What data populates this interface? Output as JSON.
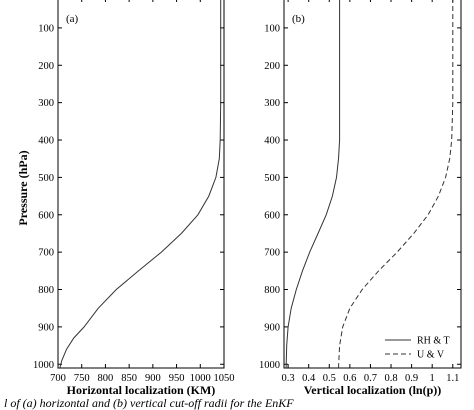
{
  "chart_data": [
    {
      "type": "line",
      "panel_label": "(a)",
      "xlabel": "Horizontal localization (KM)",
      "ylabel": "Pressure (hPa)",
      "xlim": [
        700,
        1050
      ],
      "ylim": [
        1010,
        20
      ],
      "y_direction": "inverted",
      "xticks": [
        700,
        750,
        800,
        850,
        900,
        950,
        1000,
        1050
      ],
      "yticks": [
        100,
        200,
        300,
        400,
        500,
        600,
        700,
        800,
        900,
        1000
      ],
      "grid": false,
      "series": [
        {
          "style": "solid",
          "x": [
            1043,
            1043,
            1043,
            1043,
            1042,
            1040,
            1033,
            1018,
            995,
            960,
            918,
            870,
            823,
            785,
            755,
            733,
            718,
            708,
            704
          ],
          "y": [
            20,
            100,
            200,
            300,
            400,
            450,
            500,
            550,
            600,
            650,
            700,
            750,
            800,
            850,
            900,
            930,
            960,
            990,
            1010
          ]
        }
      ]
    },
    {
      "type": "line",
      "panel_label": "(b)",
      "xlabel": "Vertical localization (ln(p))",
      "xlim": [
        0.28,
        1.14
      ],
      "ylim": [
        1010,
        20
      ],
      "y_direction": "inverted",
      "xticks": [
        0.3,
        0.4,
        0.5,
        0.6,
        0.7,
        0.8,
        0.9,
        1.0,
        1.1
      ],
      "xtick_labels": [
        "0.3",
        "0.4",
        "0.5",
        "0.6",
        "0.7",
        "0.8",
        "0.9",
        "1",
        "1.1"
      ],
      "yticks": [
        100,
        200,
        300,
        400,
        500,
        600,
        700,
        800,
        900,
        1000
      ],
      "grid": false,
      "legend_position": "bottom-right",
      "series": [
        {
          "name": "RH & T",
          "style": "solid",
          "x": [
            0.55,
            0.55,
            0.55,
            0.55,
            0.55,
            0.545,
            0.535,
            0.515,
            0.485,
            0.445,
            0.405,
            0.37,
            0.34,
            0.315,
            0.3,
            0.293,
            0.29
          ],
          "y": [
            20,
            100,
            200,
            300,
            400,
            450,
            500,
            550,
            600,
            650,
            700,
            750,
            800,
            850,
            900,
            950,
            1010
          ]
        },
        {
          "name": "U & V",
          "style": "dashed",
          "x": [
            1.1,
            1.1,
            1.1,
            1.1,
            1.095,
            1.085,
            1.065,
            1.03,
            0.98,
            0.91,
            0.83,
            0.74,
            0.66,
            0.6,
            0.565,
            0.55,
            0.545
          ],
          "y": [
            20,
            100,
            200,
            300,
            400,
            450,
            500,
            550,
            600,
            650,
            700,
            750,
            800,
            850,
            900,
            950,
            1010
          ]
        }
      ]
    }
  ],
  "caption": "l of (a) horizontal and (b) vertical cut-off radii for the EnKF"
}
